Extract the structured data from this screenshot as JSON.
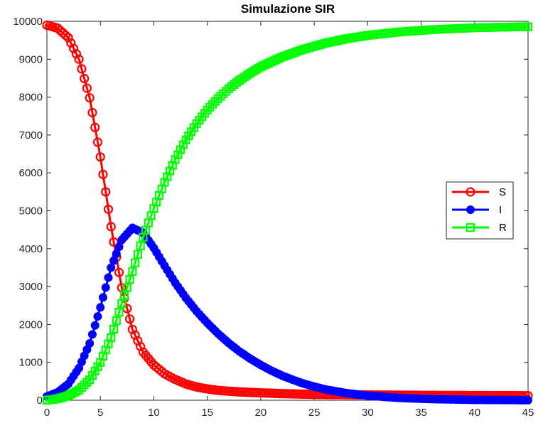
{
  "chart_data": {
    "type": "line",
    "title": "Simulazione SIR",
    "xlabel": "",
    "ylabel": "",
    "xlim": [
      0,
      45
    ],
    "ylim": [
      0,
      10000
    ],
    "xticks": [
      0,
      5,
      10,
      15,
      20,
      25,
      30,
      35,
      40,
      45
    ],
    "yticks": [
      0,
      1000,
      2000,
      3000,
      4000,
      5000,
      6000,
      7000,
      8000,
      9000,
      10000
    ],
    "grid": false,
    "legend_position": "right",
    "series": [
      {
        "name": "S",
        "color": "#ff0000",
        "marker": "circle-open",
        "x": [
          0,
          1,
          2,
          3,
          4,
          5,
          6,
          7,
          8,
          9,
          10,
          11,
          12,
          13,
          14,
          15,
          16,
          18,
          20,
          22,
          25,
          30,
          35,
          40,
          45
        ],
        "y": [
          9900,
          9820,
          9570,
          9000,
          7980,
          6420,
          4580,
          2970,
          1870,
          1270,
          930,
          700,
          550,
          430,
          350,
          300,
          260,
          220,
          195,
          175,
          155,
          140,
          130,
          125,
          120
        ]
      },
      {
        "name": "I",
        "color": "#0000ff",
        "marker": "circle-filled",
        "x": [
          0,
          1,
          2,
          3,
          4,
          5,
          6,
          7,
          8,
          9,
          10,
          11,
          12,
          13,
          14,
          15,
          16,
          17,
          18,
          19,
          20,
          21,
          22,
          23,
          24,
          25,
          26,
          28,
          30,
          33,
          36,
          40,
          45
        ],
        "y": [
          100,
          210,
          430,
          850,
          1500,
          2450,
          3500,
          4230,
          4550,
          4420,
          4020,
          3550,
          3100,
          2700,
          2350,
          2040,
          1760,
          1510,
          1290,
          1100,
          930,
          780,
          650,
          540,
          440,
          360,
          290,
          190,
          120,
          60,
          30,
          10,
          2
        ]
      },
      {
        "name": "R",
        "color": "#00ff00",
        "marker": "square-open",
        "x": [
          0,
          1,
          2,
          3,
          4,
          5,
          6,
          7,
          8,
          9,
          10,
          11,
          12,
          13,
          14,
          15,
          16,
          17,
          18,
          19,
          20,
          22,
          24,
          26,
          28,
          30,
          33,
          36,
          40,
          45
        ],
        "y": [
          0,
          40,
          120,
          270,
          540,
          1000,
          1650,
          2550,
          3400,
          4300,
          5060,
          5750,
          6350,
          6870,
          7300,
          7660,
          7960,
          8220,
          8440,
          8630,
          8800,
          9060,
          9260,
          9420,
          9540,
          9630,
          9720,
          9780,
          9830,
          9860
        ]
      }
    ]
  }
}
